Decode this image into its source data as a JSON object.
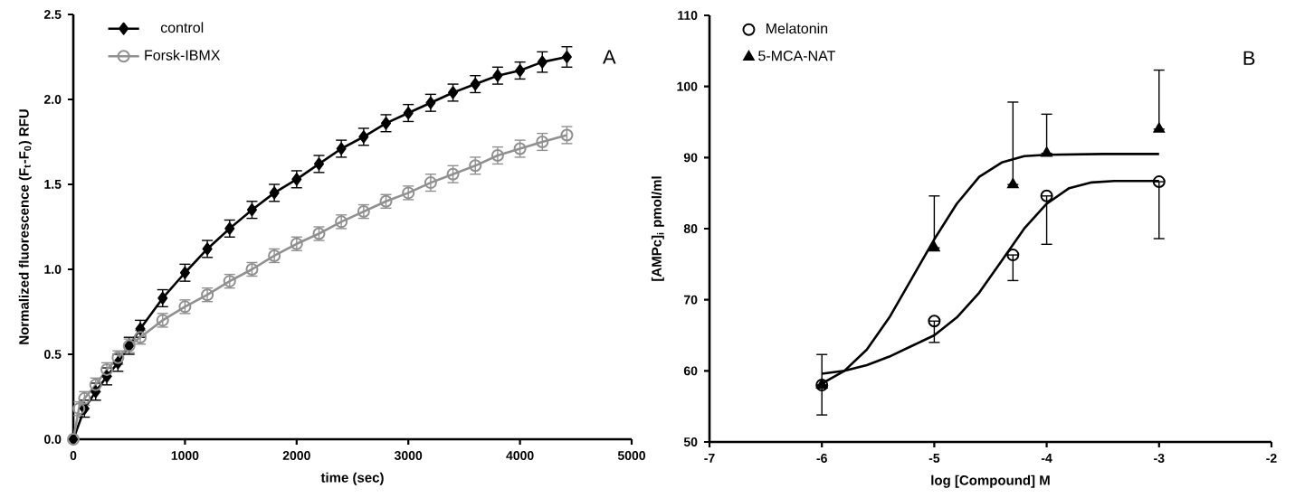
{
  "chart_data": [
    {
      "type": "line",
      "xlabel": "time (sec)",
      "ylabel": "Normalized fluorescence (F$_{t}$-F$_{0}$) RFU",
      "annotations": [
        "A"
      ],
      "xlim": [
        0,
        5000
      ],
      "ylim": [
        0,
        2.5
      ],
      "xticks": [
        0,
        1000,
        2000,
        3000,
        4000,
        5000
      ],
      "yticks": [
        {
          "value": 0,
          "label": "0.0"
        },
        0.5,
        {
          "value": 1,
          "label": "1.0"
        },
        1.5,
        {
          "value": 2,
          "label": "2.0"
        },
        2.5
      ],
      "legend": "top left",
      "series": [
        {
          "name": "control",
          "color": "#000000",
          "marker": "diamond",
          "x": [
            0,
            100,
            200,
            300,
            400,
            500,
            600,
            800,
            1000,
            1200,
            1400,
            1600,
            1800,
            2000,
            2200,
            2400,
            2600,
            2800,
            3000,
            3200,
            3400,
            3600,
            3800,
            4000,
            4200,
            4420
          ],
          "values": [
            0,
            0.18,
            0.28,
            0.37,
            0.45,
            0.55,
            0.65,
            0.83,
            0.98,
            1.12,
            1.24,
            1.35,
            1.45,
            1.53,
            1.62,
            1.71,
            1.78,
            1.86,
            1.92,
            1.98,
            2.04,
            2.09,
            2.14,
            2.17,
            2.22,
            2.25
          ],
          "errors": [
            null,
            0.05,
            0.05,
            0.05,
            0.05,
            0.05,
            0.05,
            0.05,
            0.05,
            0.05,
            0.05,
            0.05,
            0.05,
            0.05,
            0.05,
            0.05,
            0.05,
            0.05,
            0.05,
            0.05,
            0.05,
            0.05,
            0.05,
            0.05,
            0.06,
            0.06
          ]
        },
        {
          "name": "Forsk-IBMX",
          "color": "#909090",
          "marker": "circle",
          "x": [
            0,
            50,
            100,
            200,
            300,
            400,
            500,
            600,
            800,
            1000,
            1200,
            1400,
            1600,
            1800,
            2000,
            2200,
            2400,
            2600,
            2800,
            3000,
            3200,
            3400,
            3600,
            3800,
            4000,
            4200,
            4420
          ],
          "values": [
            0,
            0.18,
            0.24,
            0.32,
            0.41,
            0.48,
            0.55,
            0.6,
            0.7,
            0.78,
            0.85,
            0.93,
            1.0,
            1.08,
            1.15,
            1.21,
            1.28,
            1.34,
            1.4,
            1.45,
            1.51,
            1.56,
            1.61,
            1.67,
            1.71,
            1.75,
            1.79
          ],
          "errors": [
            null,
            0.04,
            0.04,
            0.04,
            0.04,
            0.04,
            0.04,
            0.04,
            0.04,
            0.04,
            0.04,
            0.04,
            0.04,
            0.04,
            0.04,
            0.04,
            0.04,
            0.04,
            0.04,
            0.04,
            0.05,
            0.05,
            0.05,
            0.05,
            0.05,
            0.05,
            0.05
          ]
        }
      ]
    },
    {
      "type": "scatter",
      "xlabel": "log [Compound] M",
      "ylabel": "[AMPc]$_{i}$ pmol/ml",
      "annotations": [
        "B"
      ],
      "xlim": [
        -7,
        -2
      ],
      "ylim": [
        50,
        110
      ],
      "xticks": [
        -7,
        -6,
        -5,
        -4,
        -3,
        -2
      ],
      "yticks": [
        50,
        60,
        70,
        80,
        90,
        100,
        110
      ],
      "legend": "top left",
      "series": [
        {
          "type": "line",
          "color": "#000000",
          "marker": "none",
          "x": [
            -6,
            -5.8,
            -5.6,
            -5.4,
            -5.2,
            -5.0,
            -4.8,
            -4.6,
            -4.4,
            -4.2,
            -4.0,
            -3.5,
            -3
          ],
          "values": [
            58.2,
            60,
            63,
            67.5,
            73,
            78.5,
            83.5,
            87.3,
            89.3,
            90.2,
            90.4,
            90.5,
            90.5
          ]
        },
        {
          "type": "line",
          "color": "#000000",
          "marker": "none",
          "x": [
            -6,
            -5.8,
            -5.6,
            -5.4,
            -5.2,
            -5.0,
            -4.8,
            -4.6,
            -4.4,
            -4.2,
            -4.0,
            -3.8,
            -3.6,
            -3.4,
            -3
          ],
          "values": [
            59.6,
            60,
            60.8,
            62,
            63.5,
            65,
            67.5,
            71,
            75.5,
            80,
            83.5,
            85.7,
            86.5,
            86.7,
            86.7
          ]
        },
        {
          "name": "Melatonin",
          "color": "#000000",
          "marker": "circle",
          "x": [
            -6,
            -5,
            -4.3,
            -4,
            -3
          ],
          "values": [
            58,
            67,
            76.3,
            84.6,
            86.6
          ],
          "errors": [
            [
              53.8,
              58
            ],
            [
              64,
              67
            ],
            [
              72.7,
              76.3
            ],
            [
              77.8,
              84.6
            ],
            [
              78.6,
              86.6
            ]
          ]
        },
        {
          "name": "5-MCA-NAT",
          "color": "#000000",
          "marker": "triangle",
          "x": [
            -6,
            -5,
            -4.3,
            -4,
            -3
          ],
          "values": [
            58,
            77.3,
            86.2,
            90.6,
            94
          ],
          "errors": [
            [
              58,
              62.3
            ],
            [
              77.3,
              84.6
            ],
            [
              86.2,
              97.8
            ],
            [
              90.6,
              96.1
            ],
            [
              94,
              102.3
            ]
          ]
        }
      ]
    }
  ]
}
